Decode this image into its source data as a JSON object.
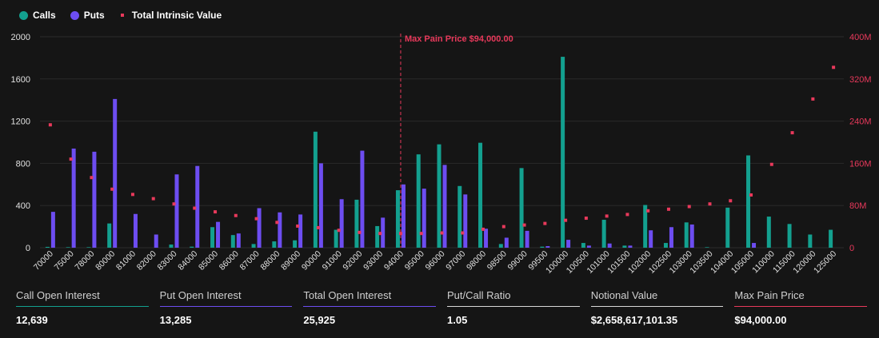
{
  "legend": {
    "calls_label": "Calls",
    "puts_label": "Puts",
    "intrinsic_label": "Total Intrinsic Value"
  },
  "colors": {
    "calls": "#13a08f",
    "puts": "#6d4df1",
    "intrinsic": "#e8395b",
    "maxpain": "#e8395b",
    "total": "#6d4df1",
    "ratio": "#d8d8d8",
    "notional": "#d8d8d8"
  },
  "chart_data": {
    "type": "bar",
    "max_pain_label": "Max Pain Price $94,000.00",
    "max_pain_strike": "94000",
    "ylim_left": [
      0,
      2000
    ],
    "yticks_left": [
      "0",
      "400",
      "800",
      "1200",
      "1600",
      "2000"
    ],
    "ylim_right": [
      0,
      400
    ],
    "yticks_right": [
      "0",
      "80M",
      "160M",
      "240M",
      "320M",
      "400M"
    ],
    "categories": [
      "70000",
      "75000",
      "78000",
      "80000",
      "81000",
      "82000",
      "83000",
      "84000",
      "85000",
      "86000",
      "87000",
      "88000",
      "89000",
      "90000",
      "91000",
      "92000",
      "93000",
      "94000",
      "95000",
      "96000",
      "97000",
      "98000",
      "98500",
      "99000",
      "99500",
      "100000",
      "100500",
      "101000",
      "101500",
      "102000",
      "102500",
      "103000",
      "103500",
      "104000",
      "105000",
      "110000",
      "115000",
      "120000",
      "125000"
    ],
    "series": [
      {
        "name": "Calls",
        "values": [
          8,
          5,
          5,
          230,
          0,
          0,
          30,
          10,
          195,
          120,
          35,
          60,
          70,
          1100,
          170,
          455,
          205,
          545,
          885,
          980,
          585,
          995,
          35,
          755,
          10,
          1810,
          45,
          265,
          20,
          405,
          45,
          240,
          5,
          380,
          875,
          295,
          225,
          125,
          170
        ]
      },
      {
        "name": "Puts",
        "values": [
          340,
          940,
          910,
          1410,
          320,
          125,
          695,
          775,
          245,
          135,
          375,
          335,
          315,
          800,
          460,
          920,
          285,
          600,
          560,
          785,
          505,
          180,
          95,
          160,
          15,
          75,
          20,
          40,
          20,
          165,
          195,
          220,
          0,
          0,
          45,
          0,
          0,
          0,
          0
        ]
      },
      {
        "name": "Total Intrinsic Value",
        "unit": "M",
        "values": [
          233,
          168,
          133,
          111,
          101,
          93,
          83,
          75,
          68,
          61,
          55,
          48,
          41,
          38,
          33,
          29,
          27,
          27,
          27,
          28,
          28,
          35,
          40,
          43,
          46,
          52,
          56,
          60,
          63,
          70,
          73,
          78,
          83,
          89,
          100,
          158,
          218,
          282,
          342
        ]
      }
    ]
  },
  "stats": [
    {
      "label": "Call Open Interest",
      "value": "12,639",
      "color": "#13a08f"
    },
    {
      "label": "Put Open Interest",
      "value": "13,285",
      "color": "#6d4df1"
    },
    {
      "label": "Total Open Interest",
      "value": "25,925",
      "color": "#6d4df1"
    },
    {
      "label": "Put/Call Ratio",
      "value": "1.05",
      "color": "#d8d8d8"
    },
    {
      "label": "Notional Value",
      "value": "$2,658,617,101.35",
      "color": "#d8d8d8"
    },
    {
      "label": "Max Pain Price",
      "value": "$94,000.00",
      "color": "#e8395b"
    }
  ]
}
